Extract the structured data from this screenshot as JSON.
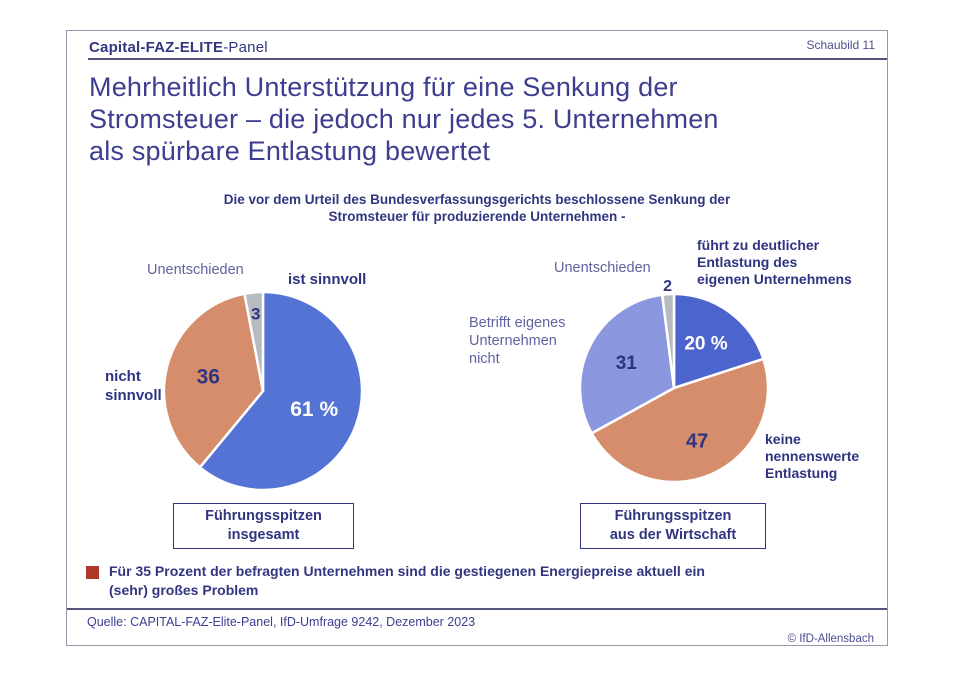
{
  "header": {
    "brand_bold": "Capital-FAZ-ELITE",
    "brand_rest": "-Panel",
    "page_label": "Schaubild  11"
  },
  "title_lines": [
    "Mehrheitlich Unterstützung für eine Senkung der",
    "Stromsteuer – die jedoch nur jedes 5. Unternehmen",
    "als spürbare Entlastung bewertet"
  ],
  "subtitle_lines": [
    "Die vor dem Urteil des Bundesverfassungsgerichts beschlossene Senkung der",
    "Stromsteuer für produzierende Unternehmen -"
  ],
  "chart_data": [
    {
      "type": "pie",
      "title": "Führungsspitzen insgesamt",
      "box_label": "Führungsspitzen\ninsgesamt",
      "start_angle_deg": 0,
      "direction": "clockwise",
      "slices": [
        {
          "label": "ist sinnvoll",
          "value": 61,
          "display": "61 %",
          "callout": "ist sinnvoll",
          "color": "#5572d5",
          "value_color": "#ffffff",
          "label_r": 0.55,
          "font": 21
        },
        {
          "label": "nicht sinnvoll",
          "value": 36,
          "display": "36",
          "callout": "nicht\nsinnvoll",
          "color": "#d68d6c",
          "value_color": "#2f3380",
          "label_r": 0.57,
          "font": 21
        },
        {
          "label": "Unentschieden",
          "value": 3,
          "display": "3",
          "callout": "Unentschieden",
          "color": "#b8bac1",
          "value_color": "#2f3380",
          "label_r": 0.78,
          "font": 17
        }
      ]
    },
    {
      "type": "pie",
      "title": "Führungsspitzen aus der Wirtschaft",
      "box_label": "Führungsspitzen\naus der Wirtschaft",
      "start_angle_deg": 0,
      "direction": "clockwise",
      "slices": [
        {
          "label": "führt zu deutlicher Entlastung des eigenen Unternehmens",
          "value": 20,
          "display": "20 %",
          "callout": "führt zu deutlicher\nEntlastung des\neigenen Unternehmens",
          "color": "#4c65ce",
          "value_color": "#ffffff",
          "label_r": 0.58,
          "font": 19
        },
        {
          "label": "keine nennenswerte Entlastung",
          "value": 47,
          "display": "47",
          "callout": "keine\nnennenswerte\nEntlastung",
          "color": "#d68d6c",
          "value_color": "#2f3380",
          "label_r": 0.62,
          "font": 20
        },
        {
          "label": "Betrifft eigenes Unternehmen nicht",
          "value": 31,
          "display": "31",
          "callout": "Betrifft eigenes\nUnternehmen\nnicht",
          "color": "#8b97de",
          "value_color": "#2f3380",
          "label_r": 0.57,
          "font": 19
        },
        {
          "label": "Unentschieden",
          "value": 2,
          "display": "2",
          "callout": "Unentschieden",
          "color": "#b8bac1",
          "value_color": "#2f3380",
          "label_r": 1.08,
          "font": 16
        }
      ]
    }
  ],
  "bullet": {
    "text": "Für 35 Prozent der befragten Unternehmen sind die gestiegenen Energiepreise aktuell ein\n(sehr) großes Problem",
    "marker_color": "#ac392a"
  },
  "footer": {
    "source": "Quelle: CAPITAL-FAZ-Elite-Panel, IfD-Umfrage 9242, Dezember 2023",
    "copyright": "© IfD-Allensbach"
  },
  "colors": {
    "navy_text": "#2f3380",
    "title_text": "#3c3e8f",
    "muted_label": "#61639f",
    "pie_blue": "#5572d5",
    "pie_blue_dark": "#4c65ce",
    "pie_salmon": "#d68d6c",
    "pie_periwinkle": "#8b97de",
    "pie_gray": "#b8bac1",
    "bullet_red": "#ac392a",
    "frame_gray": "#9697a8"
  }
}
